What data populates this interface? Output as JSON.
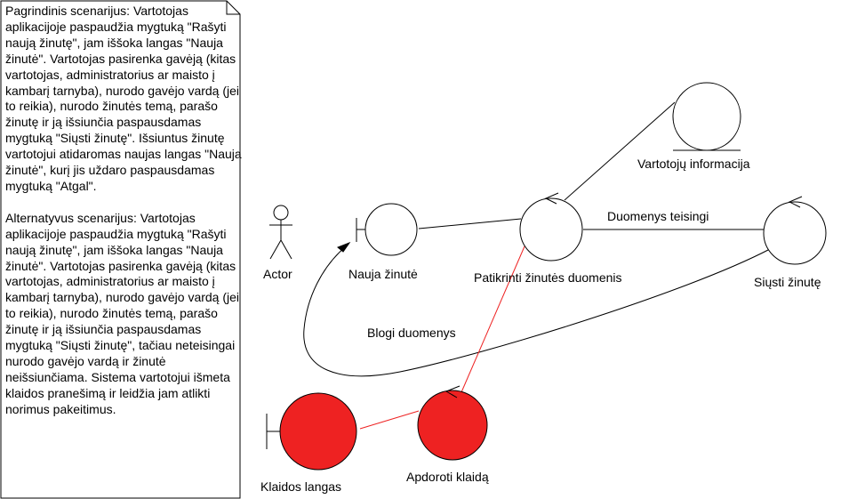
{
  "note": {
    "main_scenario": "Pagrindinis scenarijus: Vartotojas aplikacijoje paspaudžia mygtuką \"Rašyti naują žinutę\", jam iššoka langas \"Nauja žinutė\". Vartotojas pasirenka gavėją (kitas vartotojas, administratorius ar maisto į kambarį tarnyba), nurodo gavėjo vardą (jei to reikia), nurodo žinutės temą, parašo žinutę ir ją išsiunčia paspausdamas mygtuką \"Siųsti žinutę\". Išsiuntus žinutę vartotojui atidaromas naujas langas \"Nauja žinutė\", kurį jis uždaro paspausdamas mygtuką \"Atgal\".",
    "alt_scenario": "Alternatyvus scenarijus: Vartotojas aplikacijoje paspaudžia mygtuką \"Rašyti naują žinutę\", jam iššoka langas \"Nauja žinutė\". Vartotojas pasirenka gavėją (kitas vartotojas, administratorius ar maisto į kambarį tarnyba), nurodo gavėjo vardą (jei to reikia), nurodo žinutės temą, parašo žinutę ir ją išsiunčia paspausdamas mygtuką \"Siųsti žinutę\", tačiau neteisingai nurodo gavėjo vardą ir žinutė neišsiunčiama. Sistema vartotojui išmeta klaidos pranešimą ir leidžia jam atlikti norimus pakeitimus."
  },
  "actor": {
    "label": "Actor"
  },
  "nodes": {
    "nauja": "Nauja žinutė",
    "patikrinti": "Patikrinti žinutės duomenis",
    "siusti": "Siųsti žinutę",
    "vartotoju": "Vartotojų informacija",
    "klaidos": "Klaidos langas",
    "apdoroti": "Apdoroti klaidą"
  },
  "edges": {
    "duomenys_teisingi": "Duomenys teisingi",
    "blogi_duomenys": "Blogi duomenys"
  },
  "colors": {
    "error_fill": "#ee2222",
    "error_line": "#ee2222",
    "stroke": "#000000",
    "fill": "#ffffff"
  }
}
